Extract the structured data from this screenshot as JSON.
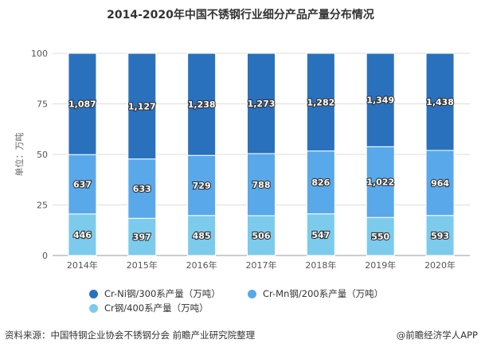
{
  "chart_data": {
    "type": "bar",
    "stacked": "percent",
    "title": "2014-2020年中国不锈钢行业细分产品产量分布情况",
    "ylabel": "单位：万吨",
    "xlabel": "",
    "ylim": [
      0,
      100
    ],
    "yticks": [
      "0",
      "25",
      "50",
      "75",
      "100"
    ],
    "grid": true,
    "legend": "bottom",
    "categories": [
      "2014年",
      "2015年",
      "2016年",
      "2017年",
      "2018年",
      "2019年",
      "2020年"
    ],
    "series": [
      {
        "name": "Cr钢/400系产量（万吨）",
        "color": "#7ccbec",
        "values": [
          446,
          397,
          485,
          506,
          547,
          550,
          593
        ]
      },
      {
        "name": "Cr-Mn钢/200系产量（万吨）",
        "color": "#59a8ea",
        "values": [
          637,
          633,
          729,
          788,
          826,
          1022,
          964
        ]
      },
      {
        "name": "Cr-Ni钢/300系产量（万吨）",
        "color": "#2a71bd",
        "values": [
          1087,
          1127,
          1238,
          1273,
          1282,
          1349,
          1438
        ]
      }
    ],
    "data_labels": {
      "Cr钢/400系产量（万吨）": [
        "446",
        "397",
        "485",
        "506",
        "547",
        "550",
        "593"
      ],
      "Cr-Mn钢/200系产量（万吨）": [
        "637",
        "633",
        "729",
        "788",
        "826",
        "1,022",
        "964"
      ],
      "Cr-Ni钢/300系产量（万吨）": [
        "1,087",
        "1,127",
        "1,238",
        "1,273",
        "1,282",
        "1,349",
        "1,438"
      ]
    }
  },
  "footer": {
    "source": "资料来源：中国特钢企业协会不锈钢分会 前瞻产业研究院整理",
    "credit": "@前瞻经济学人APP"
  }
}
